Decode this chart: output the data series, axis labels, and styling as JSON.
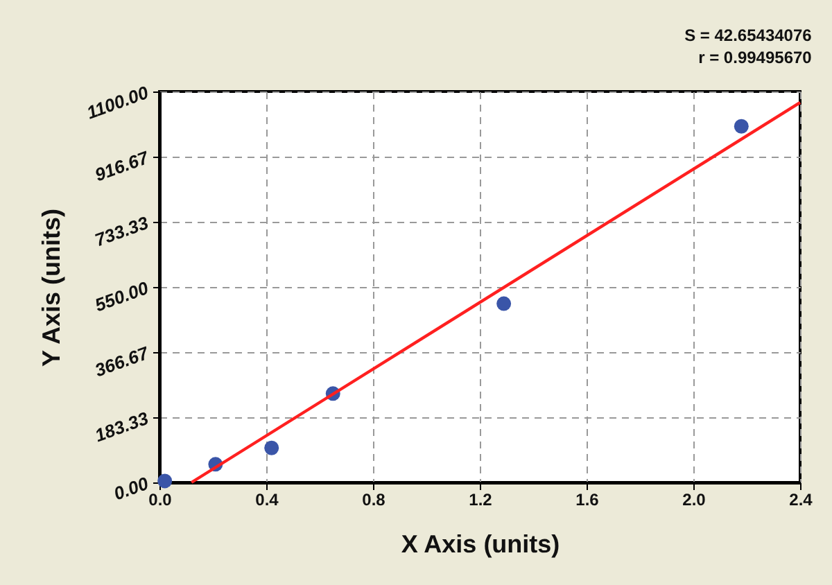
{
  "chart_data": {
    "type": "scatter",
    "xlabel": "X Axis (units)",
    "ylabel": "Y Axis (units)",
    "annotations": [
      "S = 42.65434076",
      "r = 0.99495670"
    ],
    "xlim": [
      0,
      2.4
    ],
    "ylim": [
      0,
      1100
    ],
    "xticks": [
      {
        "value": 0,
        "label": "0.0"
      },
      0.4,
      0.8,
      1.2,
      1.6,
      {
        "value": 2,
        "label": "2.0"
      },
      2.4
    ],
    "yticks": [
      {
        "value": 0,
        "label": "0.00"
      },
      183.33,
      366.67,
      {
        "value": 550,
        "label": "550.00"
      },
      733.33,
      916.67,
      {
        "value": 1100,
        "label": "1100.00"
      }
    ],
    "grid": true,
    "series": [
      {
        "marker": "circle",
        "color": "#3a55a8",
        "x": [
          0.02,
          0.21,
          0.42,
          0.65,
          1.29,
          2.18
        ],
        "values": [
          4,
          51,
          97,
          250,
          503,
          1002
        ]
      },
      {
        "type": "line",
        "marker": "none",
        "color": "#ff2020",
        "line_style": "solid",
        "x": [
          0.12,
          2.4
        ],
        "values": [
          0,
          1069
        ]
      }
    ]
  }
}
